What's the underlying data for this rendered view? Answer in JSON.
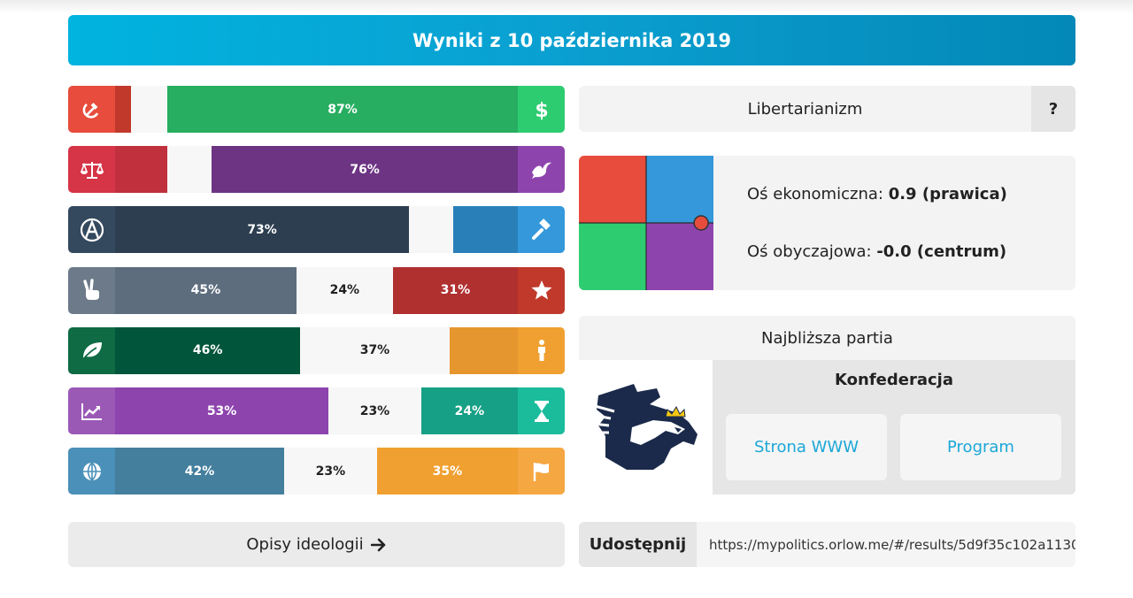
{
  "header": {
    "title": "Wyniki z 10 października 2019"
  },
  "bars": [
    {
      "left_icon": "hammer-sickle-icon",
      "right_icon": "dollar-icon",
      "colors": {
        "left_cap": "#e74c3c",
        "right_cap": "#2ecc71"
      },
      "segments": [
        {
          "value": 0.04,
          "label": "",
          "color": "#c0392b"
        },
        {
          "value": 0.09,
          "label": "",
          "color": "#f7f7f7"
        },
        {
          "value": 0.87,
          "label": "87%",
          "color": "#27ae60"
        }
      ]
    },
    {
      "left_icon": "scales-icon",
      "right_icon": "dove-icon",
      "colors": {
        "left_cap": "#d63447",
        "right_cap": "#8e44ad"
      },
      "segments": [
        {
          "value": 0.13,
          "label": "",
          "color": "#c0303d"
        },
        {
          "value": 0.11,
          "label": "",
          "color": "#f7f7f7"
        },
        {
          "value": 0.76,
          "label": "76%",
          "color": "#6c3483"
        }
      ]
    },
    {
      "left_icon": "anarchy-icon",
      "right_icon": "gavel-icon",
      "colors": {
        "left_cap": "#34495e",
        "right_cap": "#3498db"
      },
      "segments": [
        {
          "value": 0.73,
          "label": "73%",
          "color": "#2c3e50"
        },
        {
          "value": 0.11,
          "label": "",
          "color": "#f7f7f7"
        },
        {
          "value": 0.16,
          "label": "",
          "color": "#2980b9"
        }
      ]
    },
    {
      "left_icon": "peace-hand-icon",
      "right_icon": "star-icon",
      "colors": {
        "left_cap": "#6c7a89",
        "right_cap": "#c0392b"
      },
      "segments": [
        {
          "value": 0.45,
          "label": "45%",
          "color": "#5d6d7e"
        },
        {
          "value": 0.24,
          "label": "24%",
          "color": "#f7f7f7"
        },
        {
          "value": 0.31,
          "label": "31%",
          "color": "#b03030"
        }
      ]
    },
    {
      "left_icon": "leaf-icon",
      "right_icon": "person-icon",
      "colors": {
        "left_cap": "#0e6b43",
        "right_cap": "#f0a030"
      },
      "segments": [
        {
          "value": 0.46,
          "label": "46%",
          "color": "#00553a"
        },
        {
          "value": 0.37,
          "label": "37%",
          "color": "#f7f7f7"
        },
        {
          "value": 0.17,
          "label": "",
          "color": "#e6962e"
        }
      ]
    },
    {
      "left_icon": "chart-line-icon",
      "right_icon": "hourglass-icon",
      "colors": {
        "left_cap": "#9b59b6",
        "right_cap": "#1abc9c"
      },
      "segments": [
        {
          "value": 0.53,
          "label": "53%",
          "color": "#8e44ad"
        },
        {
          "value": 0.23,
          "label": "23%",
          "color": "#f7f7f7"
        },
        {
          "value": 0.24,
          "label": "24%",
          "color": "#16a085"
        }
      ]
    },
    {
      "left_icon": "globe-icon",
      "right_icon": "flag-icon",
      "colors": {
        "left_cap": "#4a90b8",
        "right_cap": "#f5a742"
      },
      "segments": [
        {
          "value": 0.42,
          "label": "42%",
          "color": "#447f9e"
        },
        {
          "value": 0.23,
          "label": "23%",
          "color": "#f7f7f7"
        },
        {
          "value": 0.35,
          "label": "35%",
          "color": "#f0a030"
        }
      ]
    }
  ],
  "ideology": {
    "name": "Libertarianizm",
    "help": "?"
  },
  "compass": {
    "economic_label": "Oś ekonomiczna:",
    "economic_value": "0.9 (prawica)",
    "social_label": "Oś obyczajowa:",
    "social_value": "-0.0 (centrum)",
    "economic": 0.9,
    "social": 0.0,
    "colors": {
      "top_left": "#e74c3c",
      "top_right": "#3498db",
      "bottom_left": "#2ecc71",
      "bottom_right": "#8e44ad",
      "marker": "#e74c3c"
    }
  },
  "party": {
    "title": "Najbliższa partia",
    "name": "Konfederacja",
    "website_label": "Strona WWW",
    "program_label": "Program"
  },
  "footer": {
    "descriptions_label": "Opisy ideologii",
    "share_label": "Udostępnij",
    "share_url": "https://mypolitics.orlow.me/#/results/5d9f35c102a1130"
  }
}
